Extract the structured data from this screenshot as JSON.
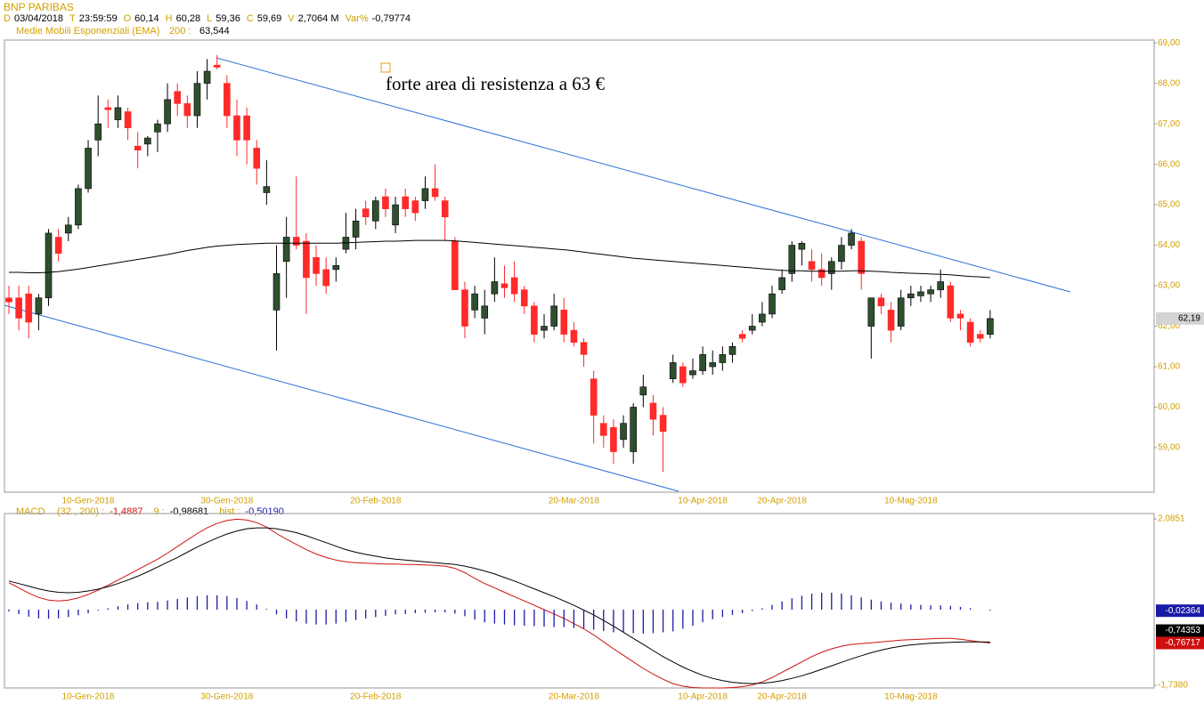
{
  "chart_data": [
    {
      "type": "candlestick",
      "title": "BNP PARIBAS",
      "info": [
        {
          "label": "D",
          "value": "03/04/2018"
        },
        {
          "label": "T",
          "value": "23:59:59"
        },
        {
          "label": "O",
          "value": "60,14"
        },
        {
          "label": "H",
          "value": "60,28"
        },
        {
          "label": "L",
          "value": "59,36"
        },
        {
          "label": "C",
          "value": "59,69"
        },
        {
          "label": "V",
          "value": "2,7064 M"
        },
        {
          "label": "Var%",
          "value": "-0,79774"
        }
      ],
      "annotation": "forte area di resistenza a 63 €",
      "categories": [
        null,
        null,
        null,
        null,
        null,
        null,
        null,
        null,
        "10-Gen-2018",
        null,
        null,
        null,
        null,
        null,
        null,
        null,
        null,
        null,
        null,
        null,
        null,
        null,
        "30-Gen-2018",
        null,
        null,
        null,
        null,
        null,
        null,
        null,
        null,
        null,
        null,
        null,
        null,
        null,
        null,
        "20-Feb-2018",
        null,
        null,
        null,
        null,
        null,
        null,
        null,
        null,
        null,
        null,
        null,
        null,
        null,
        null,
        null,
        null,
        null,
        null,
        null,
        "20-Mar-2018",
        null,
        null,
        null,
        null,
        null,
        null,
        null,
        null,
        null,
        null,
        null,
        null,
        "10-Apr-2018",
        null,
        null,
        null,
        null,
        null,
        null,
        null,
        "20-Apr-2018",
        null,
        null,
        null,
        null,
        null,
        null,
        null,
        null,
        null,
        null,
        null,
        null,
        "10-Mag-2018",
        null,
        null,
        null,
        null,
        null,
        null,
        null,
        null
      ],
      "open": [
        62.7,
        62.7,
        62.8,
        62.3,
        62.7,
        64.2,
        64.3,
        64.5,
        65.4,
        66.6,
        67.4,
        67.1,
        67.3,
        66.45,
        66.5,
        66.8,
        67.0,
        67.8,
        67.5,
        67.2,
        68.0,
        68.45,
        68.0,
        67.2,
        67.2,
        66.4,
        65.3,
        62.4,
        63.6,
        64.2,
        64.1,
        63.7,
        63.4,
        63.4,
        63.9,
        64.2,
        64.9,
        64.6,
        65.2,
        64.5,
        65.2,
        65.1,
        65.1,
        65.4,
        65.1,
        64.1,
        62.9,
        62.4,
        62.2,
        62.8,
        63.05,
        63.2,
        62.9,
        62.5,
        61.9,
        62.0,
        62.4,
        61.9,
        61.6,
        60.7,
        59.6,
        59.5,
        59.2,
        58.9,
        60.3,
        60.1,
        59.8,
        60.7,
        61.0,
        60.8,
        60.9,
        61.0,
        61.1,
        61.3,
        61.8,
        61.9,
        62.1,
        62.3,
        62.9,
        63.3,
        63.9,
        63.6,
        63.4,
        63.3,
        63.6,
        64.0,
        64.1,
        62.0,
        62.7,
        62.4,
        62.0,
        62.7,
        62.75,
        62.8,
        62.9,
        63.0,
        62.3,
        62.1,
        61.8,
        61.8
      ],
      "high": [
        63.0,
        63.0,
        63.0,
        62.8,
        64.4,
        64.4,
        64.7,
        65.5,
        66.6,
        67.7,
        67.6,
        67.7,
        67.4,
        66.8,
        66.7,
        67.1,
        68.0,
        68.0,
        67.7,
        68.3,
        68.6,
        68.7,
        68.2,
        67.6,
        67.4,
        66.6,
        66.1,
        64.0,
        64.7,
        65.7,
        64.3,
        64.0,
        63.7,
        63.7,
        64.8,
        64.9,
        65.1,
        65.2,
        65.4,
        65.2,
        65.4,
        65.2,
        65.7,
        66.0,
        65.2,
        64.2,
        63.1,
        63.0,
        62.9,
        63.7,
        63.5,
        63.6,
        63.0,
        62.6,
        62.3,
        62.8,
        62.7,
        62.1,
        61.7,
        60.9,
        59.8,
        59.7,
        59.8,
        60.1,
        60.8,
        60.3,
        60.0,
        61.3,
        61.1,
        61.2,
        61.5,
        61.4,
        61.5,
        61.6,
        61.9,
        62.3,
        62.6,
        63.0,
        63.4,
        64.1,
        64.1,
        63.9,
        63.8,
        63.7,
        64.2,
        64.4,
        64.2,
        62.7,
        62.8,
        62.6,
        62.9,
        63.0,
        63.0,
        63.0,
        63.4,
        63.1,
        62.4,
        62.2,
        61.9,
        62.4
      ],
      "low": [
        62.3,
        61.9,
        61.7,
        61.9,
        62.5,
        63.6,
        64.1,
        64.4,
        65.3,
        66.2,
        66.9,
        66.9,
        66.6,
        65.9,
        66.2,
        66.3,
        66.8,
        67.2,
        66.9,
        66.9,
        67.6,
        68.35,
        66.9,
        66.2,
        66.0,
        65.5,
        65.0,
        61.4,
        62.7,
        63.9,
        62.3,
        63.0,
        62.8,
        63.1,
        63.8,
        63.9,
        64.5,
        64.4,
        64.7,
        64.3,
        64.7,
        64.6,
        64.9,
        65.1,
        64.1,
        62.9,
        61.7,
        62.2,
        61.8,
        62.6,
        62.7,
        62.6,
        62.3,
        61.6,
        61.7,
        61.9,
        61.6,
        61.5,
        61.0,
        59.1,
        59.0,
        58.6,
        59.0,
        58.6,
        60.0,
        59.3,
        58.4,
        60.6,
        60.5,
        60.7,
        60.8,
        60.8,
        60.9,
        61.1,
        61.6,
        61.8,
        62.0,
        62.2,
        62.8,
        63.1,
        63.5,
        63.1,
        63.0,
        62.9,
        63.4,
        63.9,
        62.9,
        61.2,
        62.3,
        61.6,
        61.9,
        62.5,
        62.6,
        62.6,
        62.7,
        62.1,
        61.9,
        61.5,
        61.6,
        61.7
      ],
      "close": [
        62.6,
        62.2,
        62.1,
        62.7,
        64.3,
        63.8,
        64.5,
        65.4,
        66.4,
        67.0,
        67.35,
        67.4,
        66.9,
        66.35,
        66.65,
        67.0,
        67.6,
        67.5,
        67.2,
        68.0,
        68.3,
        68.4,
        67.2,
        66.6,
        66.6,
        65.9,
        65.45,
        63.3,
        64.2,
        64.0,
        63.2,
        63.3,
        63.0,
        63.5,
        64.2,
        64.6,
        64.7,
        65.1,
        64.9,
        65.0,
        64.9,
        64.8,
        65.4,
        65.2,
        64.7,
        62.9,
        62.0,
        62.8,
        62.5,
        63.1,
        62.95,
        62.8,
        62.5,
        61.8,
        62.0,
        62.5,
        61.8,
        61.6,
        61.3,
        59.8,
        59.3,
        58.9,
        59.6,
        60.0,
        60.5,
        59.7,
        59.4,
        61.1,
        60.6,
        60.9,
        61.3,
        61.1,
        61.3,
        61.5,
        61.7,
        62.0,
        62.3,
        62.8,
        63.2,
        64.0,
        64.05,
        63.4,
        63.2,
        63.6,
        64.0,
        64.3,
        63.3,
        62.7,
        62.5,
        61.9,
        62.7,
        62.8,
        62.85,
        62.9,
        63.1,
        62.2,
        62.2,
        61.6,
        61.7,
        62.19
      ],
      "up_color": "#2f4f2f",
      "down_color": "#ff2a2a",
      "overlay": {
        "name": "Medie Mobili Esponenziali (EMA)",
        "period": "200 :",
        "reading": "63,544",
        "color": "#000000",
        "values": [
          63.33,
          63.33,
          63.32,
          63.32,
          63.33,
          63.35,
          63.38,
          63.41,
          63.45,
          63.49,
          63.53,
          63.57,
          63.61,
          63.65,
          63.69,
          63.73,
          63.77,
          63.82,
          63.87,
          63.91,
          63.95,
          63.98,
          64.0,
          64.02,
          64.03,
          64.04,
          64.05,
          64.05,
          64.05,
          64.05,
          64.05,
          64.05,
          64.05,
          64.05,
          64.06,
          64.07,
          64.08,
          64.09,
          64.1,
          64.1,
          64.11,
          64.12,
          64.12,
          64.12,
          64.12,
          64.11,
          64.09,
          64.07,
          64.05,
          64.03,
          64.01,
          63.99,
          63.97,
          63.95,
          63.93,
          63.91,
          63.89,
          63.86,
          63.83,
          63.8,
          63.77,
          63.74,
          63.71,
          63.68,
          63.66,
          63.64,
          63.62,
          63.6,
          63.58,
          63.56,
          63.54,
          63.52,
          63.5,
          63.48,
          63.46,
          63.44,
          63.42,
          63.4,
          63.38,
          63.37,
          63.37,
          63.36,
          63.36,
          63.36,
          63.36,
          63.37,
          63.37,
          63.36,
          63.35,
          63.33,
          63.32,
          63.31,
          63.3,
          63.29,
          63.28,
          63.27,
          63.25,
          63.23,
          63.22,
          63.2
        ]
      },
      "last_label": {
        "value": 62.19,
        "label": "62,19"
      },
      "ylim": [
        57.9,
        69.07
      ],
      "yticks": [
        {
          "value": 59,
          "label": "59,00"
        },
        {
          "value": 60,
          "label": "60,00"
        },
        {
          "value": 61,
          "label": "61,00"
        },
        {
          "value": 62,
          "label": "62,00"
        },
        {
          "value": 63,
          "label": "63,00"
        },
        {
          "value": 64,
          "label": "64,00"
        },
        {
          "value": 65,
          "label": "65,00"
        },
        {
          "value": 66,
          "label": "66,00"
        },
        {
          "value": 67,
          "label": "67,00"
        },
        {
          "value": 68,
          "label": "68,00"
        },
        {
          "value": 69,
          "label": "69,00"
        }
      ]
    },
    {
      "type": "macd",
      "title": "MACD",
      "series": [
        {
          "name": "(32 , 200) :",
          "reading": "-1,4887",
          "color": "#d01010",
          "kind": "line",
          "last_label": {
            "value": -0.76717,
            "label": "-0,76717"
          },
          "values": [
            0.62,
            0.5,
            0.38,
            0.28,
            0.22,
            0.2,
            0.22,
            0.27,
            0.35,
            0.45,
            0.56,
            0.68,
            0.8,
            0.92,
            1.04,
            1.16,
            1.3,
            1.45,
            1.6,
            1.75,
            1.88,
            1.98,
            2.05,
            2.08,
            2.06,
            2.0,
            1.9,
            1.75,
            1.62,
            1.5,
            1.38,
            1.28,
            1.2,
            1.14,
            1.1,
            1.08,
            1.07,
            1.06,
            1.05,
            1.05,
            1.04,
            1.04,
            1.03,
            1.02,
            1.0,
            0.95,
            0.85,
            0.72,
            0.6,
            0.5,
            0.4,
            0.3,
            0.2,
            0.1,
            0.0,
            -0.1,
            -0.2,
            -0.32,
            -0.44,
            -0.58,
            -0.74,
            -0.9,
            -1.05,
            -1.2,
            -1.35,
            -1.48,
            -1.6,
            -1.7,
            -1.76,
            -1.79,
            -1.8,
            -1.8,
            -1.8,
            -1.79,
            -1.77,
            -1.73,
            -1.66,
            -1.56,
            -1.44,
            -1.32,
            -1.2,
            -1.08,
            -0.98,
            -0.9,
            -0.84,
            -0.8,
            -0.78,
            -0.76,
            -0.74,
            -0.72,
            -0.7,
            -0.69,
            -0.68,
            -0.67,
            -0.66,
            -0.66,
            -0.68,
            -0.71,
            -0.74,
            -0.76717
          ]
        },
        {
          "name": "9 :",
          "reading": "-0,98681",
          "color": "#000000",
          "kind": "line",
          "last_label": {
            "value": -0.74353,
            "label": "-0,74353"
          },
          "values": [
            0.66,
            0.6,
            0.54,
            0.48,
            0.43,
            0.4,
            0.39,
            0.4,
            0.43,
            0.47,
            0.53,
            0.6,
            0.68,
            0.77,
            0.87,
            0.98,
            1.09,
            1.2,
            1.32,
            1.44,
            1.55,
            1.65,
            1.74,
            1.81,
            1.86,
            1.88,
            1.88,
            1.86,
            1.82,
            1.77,
            1.7,
            1.62,
            1.54,
            1.46,
            1.38,
            1.32,
            1.27,
            1.23,
            1.19,
            1.16,
            1.14,
            1.12,
            1.1,
            1.08,
            1.06,
            1.04,
            1.0,
            0.95,
            0.89,
            0.82,
            0.74,
            0.66,
            0.57,
            0.48,
            0.39,
            0.3,
            0.2,
            0.1,
            -0.01,
            -0.12,
            -0.25,
            -0.38,
            -0.52,
            -0.66,
            -0.8,
            -0.94,
            -1.08,
            -1.2,
            -1.32,
            -1.42,
            -1.51,
            -1.58,
            -1.63,
            -1.67,
            -1.69,
            -1.7,
            -1.69,
            -1.67,
            -1.63,
            -1.58,
            -1.52,
            -1.45,
            -1.37,
            -1.29,
            -1.21,
            -1.13,
            -1.06,
            -0.99,
            -0.93,
            -0.88,
            -0.84,
            -0.81,
            -0.79,
            -0.77,
            -0.76,
            -0.75,
            -0.745,
            -0.743,
            -0.743,
            -0.74353
          ]
        },
        {
          "name": "hist :",
          "reading": "-0,50190",
          "color": "#1a1aa8",
          "kind": "histogram",
          "last_label": {
            "value": -0.02364,
            "label": "-0,02364"
          },
          "values": [
            -0.04,
            -0.1,
            -0.16,
            -0.2,
            -0.21,
            -0.2,
            -0.17,
            -0.13,
            -0.08,
            -0.02,
            0.03,
            0.08,
            0.12,
            0.15,
            0.17,
            0.18,
            0.21,
            0.25,
            0.28,
            0.31,
            0.33,
            0.33,
            0.31,
            0.27,
            0.2,
            0.12,
            0.02,
            -0.11,
            -0.2,
            -0.27,
            -0.32,
            -0.34,
            -0.34,
            -0.32,
            -0.28,
            -0.24,
            -0.2,
            -0.17,
            -0.14,
            -0.11,
            -0.1,
            -0.08,
            -0.07,
            -0.06,
            -0.06,
            -0.09,
            -0.15,
            -0.23,
            -0.29,
            -0.32,
            -0.34,
            -0.36,
            -0.37,
            -0.38,
            -0.39,
            -0.4,
            -0.4,
            -0.42,
            -0.43,
            -0.46,
            -0.49,
            -0.52,
            -0.53,
            -0.54,
            -0.55,
            -0.54,
            -0.52,
            -0.5,
            -0.44,
            -0.37,
            -0.29,
            -0.22,
            -0.17,
            -0.12,
            -0.08,
            -0.03,
            0.03,
            0.11,
            0.19,
            0.26,
            0.32,
            0.37,
            0.39,
            0.39,
            0.37,
            0.33,
            0.28,
            0.23,
            0.19,
            0.16,
            0.14,
            0.12,
            0.11,
            0.1,
            0.1,
            0.09,
            0.065,
            0.033,
            0.003,
            -0.02364
          ]
        }
      ],
      "ylim": [
        -1.8,
        2.21
      ],
      "yticks": [
        {
          "value": 2.0851,
          "label": "2,0851"
        },
        {
          "value": -1.738,
          "label": "-1,7380"
        }
      ]
    }
  ]
}
